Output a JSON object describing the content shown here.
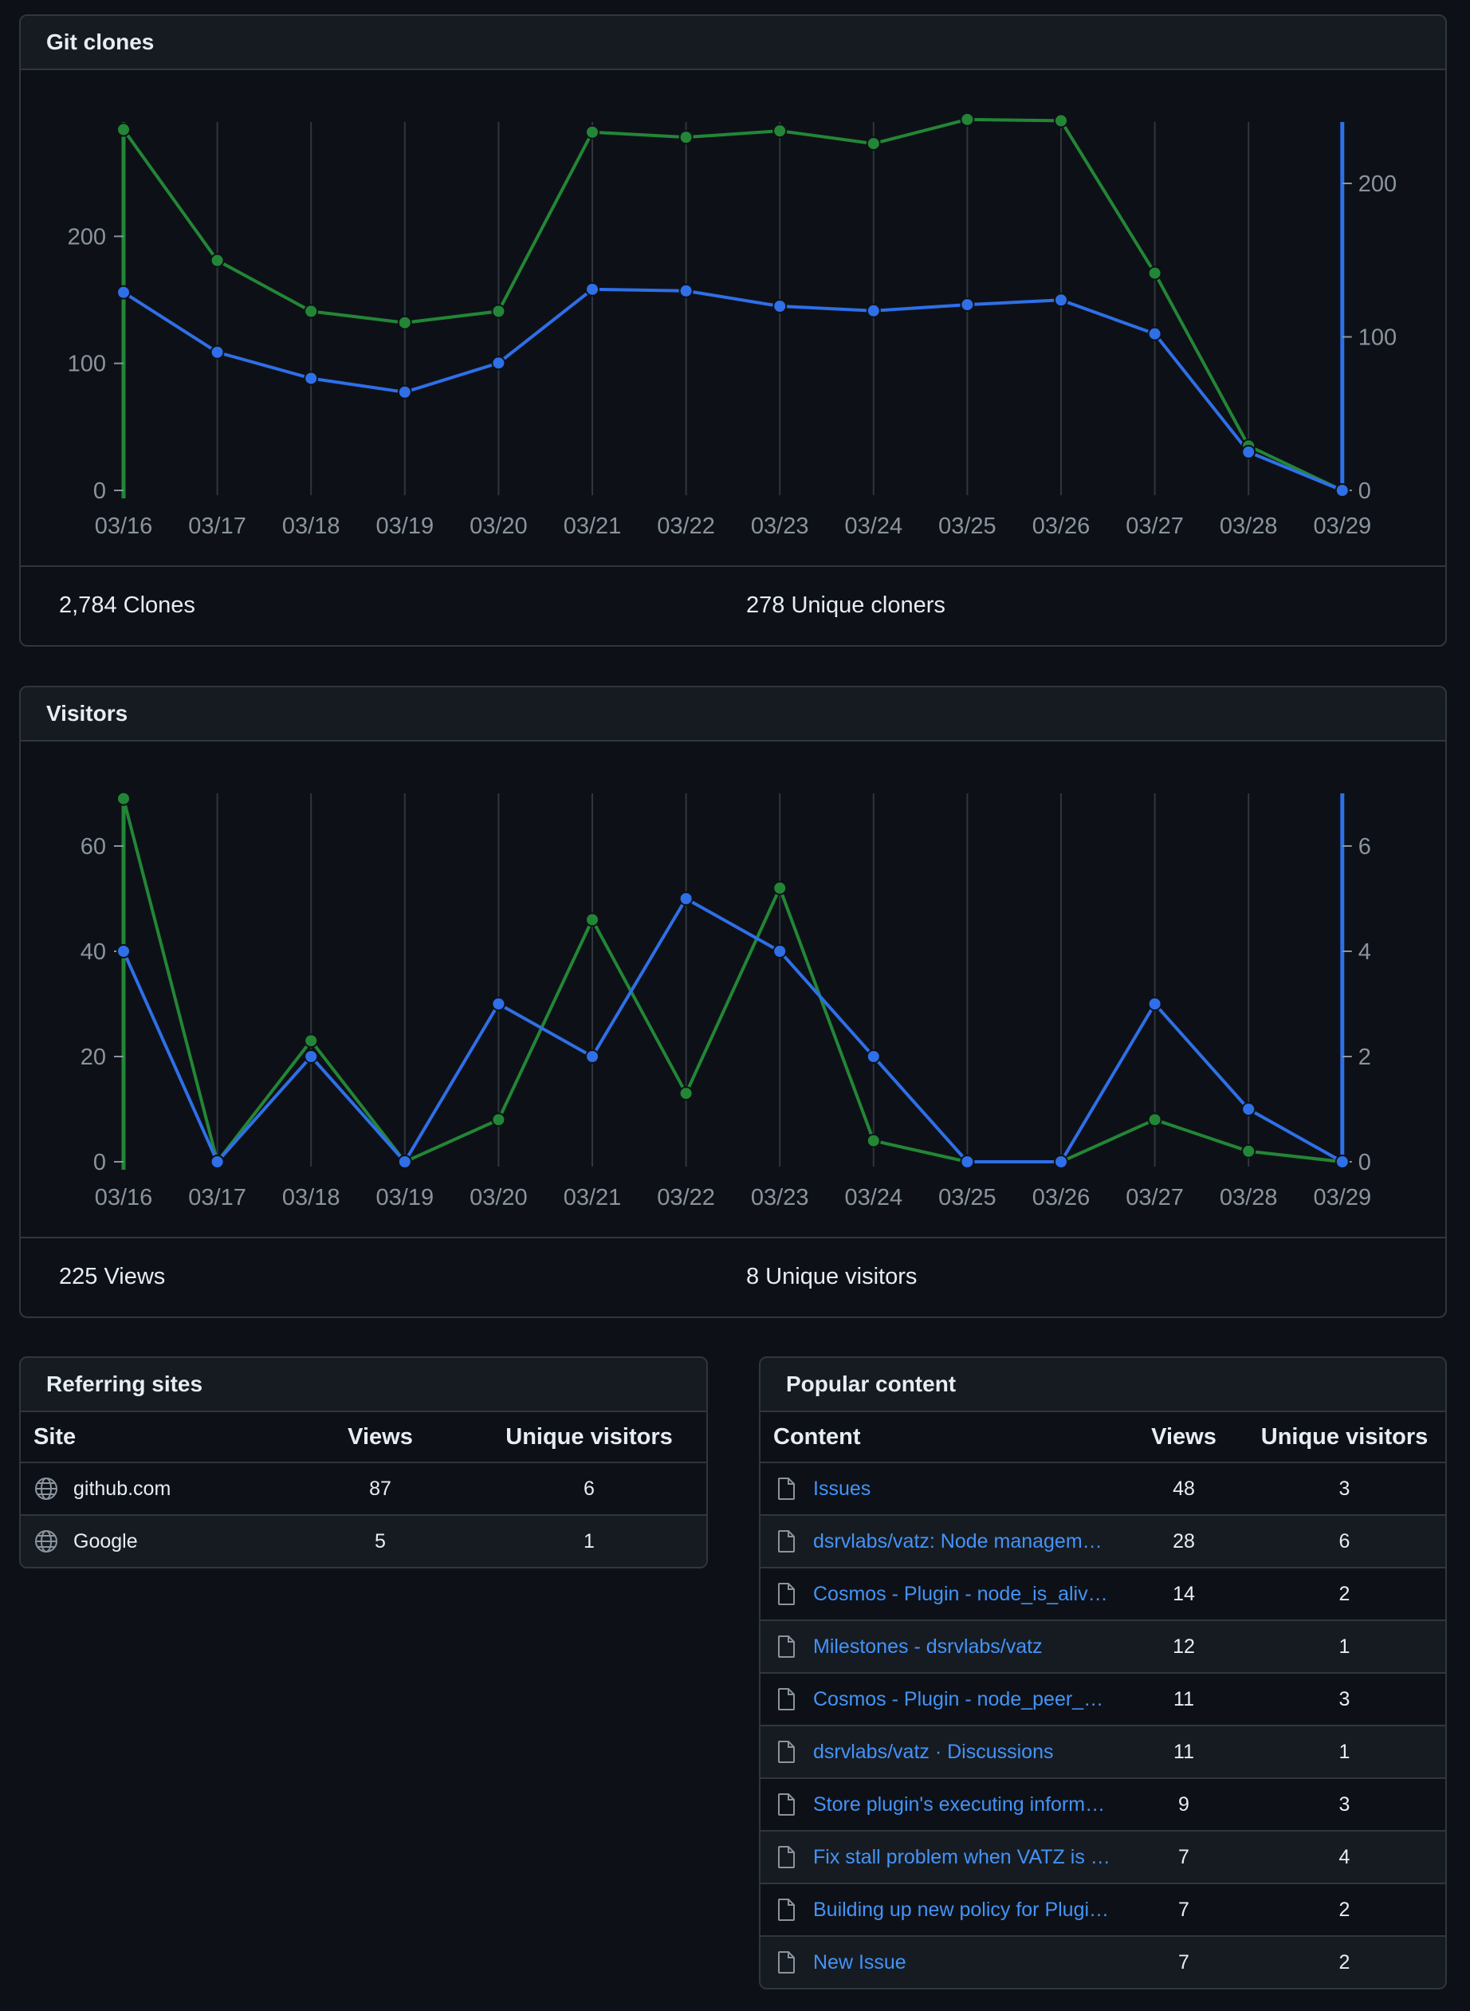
{
  "colors": {
    "clones": "#238636",
    "unique": "#2f6fe8",
    "grid": "#30363d",
    "axis_text": "#8b949e"
  },
  "git_clones": {
    "title": "Git clones",
    "total_label": "2,784 Clones",
    "unique_label": "278 Unique cloners",
    "chart_data": {
      "type": "line",
      "categories": [
        "03/16",
        "03/17",
        "03/18",
        "03/19",
        "03/20",
        "03/21",
        "03/22",
        "03/23",
        "03/24",
        "03/25",
        "03/26",
        "03/27",
        "03/28",
        "03/29"
      ],
      "left_axis": {
        "ticks": [
          0,
          100,
          200
        ],
        "ylim": [
          0,
          290
        ]
      },
      "right_axis": {
        "ticks": [
          0,
          100,
          200
        ],
        "ylim": [
          0,
          240
        ]
      },
      "series": [
        {
          "name": "Clones",
          "axis": "left",
          "color": "#238636",
          "values": [
            284,
            181,
            141,
            132,
            141,
            282,
            278,
            283,
            273,
            292,
            291,
            171,
            35,
            0
          ]
        },
        {
          "name": "Unique cloners",
          "axis": "right",
          "color": "#2f6fe8",
          "values": [
            129,
            90,
            73,
            64,
            83,
            131,
            130,
            120,
            117,
            121,
            124,
            102,
            25,
            0
          ]
        }
      ]
    }
  },
  "visitors": {
    "title": "Visitors",
    "total_label": "225 Views",
    "unique_label": "8 Unique visitors",
    "chart_data": {
      "type": "line",
      "categories": [
        "03/16",
        "03/17",
        "03/18",
        "03/19",
        "03/20",
        "03/21",
        "03/22",
        "03/23",
        "03/24",
        "03/25",
        "03/26",
        "03/27",
        "03/28",
        "03/29"
      ],
      "left_axis": {
        "ticks": [
          0,
          20,
          40,
          60
        ],
        "ylim": [
          0,
          70
        ]
      },
      "right_axis": {
        "ticks": [
          0,
          2,
          4,
          6
        ],
        "ylim": [
          0,
          7
        ]
      },
      "series": [
        {
          "name": "Views",
          "axis": "left",
          "color": "#238636",
          "values": [
            69,
            0,
            23,
            0,
            8,
            46,
            13,
            52,
            4,
            0,
            0,
            8,
            2,
            0
          ]
        },
        {
          "name": "Unique visitors",
          "axis": "right",
          "color": "#2f6fe8",
          "values": [
            4,
            0,
            2,
            0,
            3,
            2,
            5,
            4,
            2,
            0,
            0,
            3,
            1,
            0
          ]
        }
      ]
    }
  },
  "referring_sites": {
    "title": "Referring sites",
    "columns": {
      "site": "Site",
      "views": "Views",
      "unique": "Unique visitors"
    },
    "rows": [
      {
        "icon": "globe-icon",
        "site": "github.com",
        "views": "87",
        "unique": "6"
      },
      {
        "icon": "globe-icon",
        "site": "Google",
        "views": "5",
        "unique": "1"
      }
    ]
  },
  "popular_content": {
    "title": "Popular content",
    "columns": {
      "content": "Content",
      "views": "Views",
      "unique": "Unique visitors"
    },
    "rows": [
      {
        "icon": "file-icon",
        "content": "Issues",
        "views": "48",
        "unique": "3"
      },
      {
        "icon": "file-icon",
        "content": "dsrvlabs/vatz: Node manageme…",
        "views": "28",
        "unique": "6"
      },
      {
        "icon": "file-icon",
        "content": "Cosmos - Plugin - node_is_aliv…",
        "views": "14",
        "unique": "2"
      },
      {
        "icon": "file-icon",
        "content": "Milestones - dsrvlabs/vatz",
        "views": "12",
        "unique": "1"
      },
      {
        "icon": "file-icon",
        "content": "Cosmos - Plugin - node_peer_…",
        "views": "11",
        "unique": "3"
      },
      {
        "icon": "file-icon",
        "content": "dsrvlabs/vatz · Discussions",
        "views": "11",
        "unique": "1"
      },
      {
        "icon": "file-icon",
        "content": "Store plugin's executing inform…",
        "views": "9",
        "unique": "3"
      },
      {
        "icon": "file-icon",
        "content": "Fix stall problem when VATZ is i…",
        "views": "7",
        "unique": "4"
      },
      {
        "icon": "file-icon",
        "content": "Building up new policy for Plugi…",
        "views": "7",
        "unique": "2"
      },
      {
        "icon": "file-icon",
        "content": "New Issue",
        "views": "7",
        "unique": "2"
      }
    ]
  }
}
